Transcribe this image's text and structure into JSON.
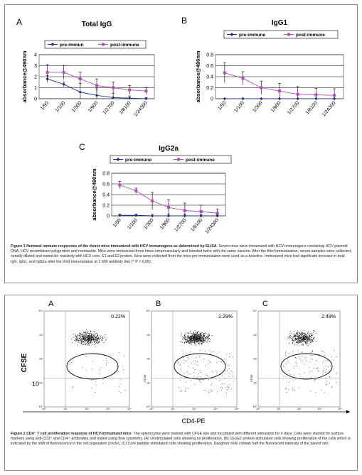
{
  "figure1": {
    "panels": [
      {
        "letter": "A",
        "chart_data": {
          "type": "line",
          "title": "Total IgG",
          "ylabel": "absorbance@490nm",
          "categories": [
            "1/50",
            "1/100",
            "1/300",
            "1/900",
            "1/2700",
            "1/8100",
            "1/24300"
          ],
          "ylim": [
            0,
            4
          ],
          "yticks": [
            0,
            1,
            2,
            3,
            4
          ],
          "legend": "top",
          "series": [
            {
              "name": "pre-immun",
              "color": "#1f2f8a",
              "marker": "diamond",
              "values": [
                1.8,
                1.3,
                0.6,
                0.3,
                0.1,
                0.05,
                0.0
              ],
              "errors": [
                0.3,
                0.2,
                0.8,
                0.6,
                0.4,
                0.2,
                0.1
              ]
            },
            {
              "name": "post-immune",
              "color": "#b050b0",
              "marker": "square",
              "values": [
                2.4,
                2.4,
                1.8,
                1.2,
                1.0,
                0.8,
                0.7
              ],
              "errors": [
                0.7,
                0.6,
                0.6,
                0.6,
                0.5,
                0.4,
                0.3
              ]
            }
          ]
        }
      },
      {
        "letter": "B",
        "chart_data": {
          "type": "line",
          "title": "IgG1",
          "ylabel": "absorbance@490nm",
          "categories": [
            "1/50",
            "1/100",
            "1/300",
            "1/900",
            "1/2700",
            "1/8100",
            "1/24300"
          ],
          "ylim": [
            0,
            0.8
          ],
          "yticks": [
            "0",
            "0.2",
            "0.4",
            "0.6",
            "0.8"
          ],
          "legend": "top",
          "series": [
            {
              "name": "pre-immune",
              "color": "#1f2f8a",
              "marker": "diamond",
              "values": [
                0,
                0,
                0,
                0,
                0,
                0,
                0
              ],
              "errors": [
                0,
                0,
                0,
                0,
                0,
                0,
                0
              ]
            },
            {
              "name": "post-immune",
              "color": "#b050b0",
              "marker": "square",
              "values": [
                0.47,
                0.37,
                0.2,
                0.14,
                0.08,
                0.07,
                0.06
              ],
              "errors": [
                0.18,
                0.12,
                0.12,
                0.14,
                0.14,
                0.12,
                0.12
              ]
            }
          ]
        }
      },
      {
        "letter": "C",
        "chart_data": {
          "type": "line",
          "title": "IgG2a",
          "ylabel": "absorbance@490nm",
          "categories": [
            "1/50",
            "1/100",
            "1/300",
            "1/900",
            "1/2700",
            "1/8100",
            "1/24300"
          ],
          "ylim": [
            0,
            0.8
          ],
          "yticks": [
            "0",
            "0.2",
            "0.4",
            "0.6",
            "0.8"
          ],
          "legend": "top",
          "series": [
            {
              "name": "pre-immune",
              "color": "#1f2f8a",
              "marker": "diamond",
              "values": [
                0.01,
                0.01,
                0.0,
                0.0,
                0.0,
                0.0,
                0.0
              ],
              "errors": [
                0.02,
                0.02,
                0.03,
                0.03,
                0.03,
                0.02,
                0.02
              ]
            },
            {
              "name": "post-immune",
              "color": "#b050b0",
              "marker": "square",
              "values": [
                0.58,
                0.47,
                0.28,
                0.16,
                0.1,
                0.08,
                0.05
              ],
              "errors": [
                0.07,
                0.05,
                0.16,
                0.14,
                0.14,
                0.12,
                0.08
              ]
            }
          ]
        }
      }
    ],
    "caption_bold": "Figure 1 Humoral immune responses of the donor mice immunized with HCV immunogens as determined by ELISA",
    "caption_text": ". Seven mice were immunized with HCV immunogens containing HCV plasmid DNA, HCV recombinant polyprotein and montanide. Mice were immunized three times intramuscularly and boosted twice with the same vaccine. After the third immunization, serum samples were collected, serially diluted and tested for reactivity with HCV core, E1 and E2 protein. Sera were collected from the mice pre-immunization were used as a baseline. Immunized mice had significant increase in total IgG, IgG1, and IgG2a after the third immunization at 1:900 antibody titer (* P < 0.05)."
  },
  "figure2": {
    "panels": [
      {
        "letter": "A",
        "percent": "0.22%"
      },
      {
        "letter": "B",
        "percent": "2.29%"
      },
      {
        "letter": "C",
        "percent": "2.49%"
      }
    ],
    "ylabel": "CFSE",
    "small_ylabel": "CFSE",
    "xlabel": "CD4-PE",
    "corner_label": "10",
    "decades": [
      "10⁰",
      "10¹",
      "10²",
      "10³",
      "10⁴"
    ],
    "caption_bold": "Figure 2 CD4⁺ T cell proliferation response of HCV-immunized mice",
    "caption_text": ". The splenocytes were stained with CFSE dye and incubated with different stimulants for 4 days. Cells were stained for surface markers using anti-CD3⁺ and CD4⁺-antibodies and tested using flow cytometry. (A) Unstimulated cells showing no proliferation, (B) CE1E2 protein-stimulated cells showing proliferation of the cells which is indicated by the shift of fluorescence in the cell population (circle), (C) Core peptide stimulated cells showing proliferation. Daughter cells contain half the fluorescent intensity of the parent cell."
  }
}
